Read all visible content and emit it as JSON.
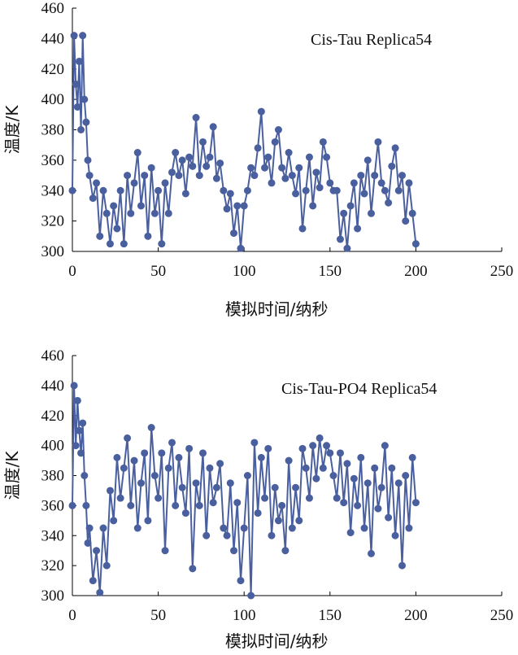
{
  "colors": {
    "series": "#4A5F9E",
    "axis": "#000000",
    "background": "#ffffff"
  },
  "chart_data": [
    {
      "type": "line",
      "title": "Cis-Tau Replica54",
      "xlabel": "模拟时间/纳秒",
      "ylabel": "温度/K",
      "xlim": [
        0,
        250
      ],
      "ylim": [
        300,
        460
      ],
      "xticks": [
        0,
        50,
        100,
        150,
        200,
        250
      ],
      "yticks": [
        300,
        320,
        340,
        360,
        380,
        400,
        420,
        440,
        460
      ],
      "grid": false,
      "legend": "none",
      "markers": true,
      "series": [
        {
          "x": [
            0,
            1,
            2,
            3,
            4,
            5,
            6,
            7,
            8,
            9,
            10,
            12,
            14,
            16,
            18,
            20,
            22,
            24,
            26,
            28,
            30,
            32,
            34,
            36,
            38,
            40,
            42,
            44,
            46,
            48,
            50,
            52,
            54,
            56,
            58,
            60,
            62,
            64,
            66,
            68,
            70,
            72,
            74,
            76,
            78,
            80,
            82,
            84,
            86,
            88,
            90,
            92,
            94,
            96,
            98,
            100,
            102,
            104,
            106,
            108,
            110,
            112,
            114,
            116,
            118,
            120,
            122,
            124,
            126,
            128,
            130,
            132,
            134,
            136,
            138,
            140,
            142,
            144,
            146,
            148,
            150,
            152,
            154,
            156,
            158,
            160,
            162,
            164,
            166,
            168,
            170,
            172,
            174,
            176,
            178,
            180,
            182,
            184,
            186,
            188,
            190,
            192,
            194,
            196,
            198,
            200
          ],
          "y": [
            340,
            442,
            410,
            395,
            425,
            380,
            442,
            400,
            385,
            360,
            350,
            335,
            345,
            310,
            340,
            325,
            305,
            330,
            315,
            340,
            305,
            350,
            325,
            345,
            365,
            330,
            350,
            310,
            355,
            325,
            340,
            305,
            345,
            325,
            352,
            365,
            350,
            360,
            338,
            362,
            356,
            388,
            350,
            372,
            356,
            362,
            382,
            348,
            358,
            340,
            328,
            338,
            312,
            330,
            302,
            330,
            340,
            355,
            350,
            368,
            392,
            355,
            362,
            345,
            372,
            380,
            355,
            348,
            365,
            350,
            338,
            355,
            315,
            340,
            362,
            330,
            352,
            342,
            372,
            362,
            345,
            340,
            340,
            308,
            325,
            302,
            330,
            345,
            315,
            350,
            338,
            360,
            325,
            350,
            372,
            345,
            340,
            332,
            356,
            368,
            340,
            350,
            320,
            345,
            325,
            305
          ]
        }
      ]
    },
    {
      "type": "line",
      "title": "Cis-Tau-PO4 Replica54",
      "xlabel": "模拟时间/纳秒",
      "ylabel": "温度/K",
      "xlim": [
        0,
        250
      ],
      "ylim": [
        300,
        460
      ],
      "xticks": [
        0,
        50,
        100,
        150,
        200,
        250
      ],
      "yticks": [
        300,
        320,
        340,
        360,
        380,
        400,
        420,
        440,
        460
      ],
      "grid": false,
      "legend": "none",
      "markers": true,
      "series": [
        {
          "x": [
            0,
            1,
            2,
            3,
            4,
            5,
            6,
            7,
            8,
            9,
            10,
            12,
            14,
            16,
            18,
            20,
            22,
            24,
            26,
            28,
            30,
            32,
            34,
            36,
            38,
            40,
            42,
            44,
            46,
            48,
            50,
            52,
            54,
            56,
            58,
            60,
            62,
            64,
            66,
            68,
            70,
            72,
            74,
            76,
            78,
            80,
            82,
            84,
            86,
            88,
            90,
            92,
            94,
            96,
            98,
            100,
            102,
            104,
            106,
            108,
            110,
            112,
            114,
            116,
            118,
            120,
            122,
            124,
            126,
            128,
            130,
            132,
            134,
            136,
            138,
            140,
            142,
            144,
            146,
            148,
            150,
            152,
            154,
            156,
            158,
            160,
            162,
            164,
            166,
            168,
            170,
            172,
            174,
            176,
            178,
            180,
            182,
            184,
            186,
            188,
            190,
            192,
            194,
            196,
            198,
            200
          ],
          "y": [
            360,
            440,
            400,
            430,
            410,
            395,
            415,
            380,
            360,
            335,
            345,
            310,
            330,
            302,
            345,
            320,
            370,
            350,
            392,
            365,
            385,
            405,
            360,
            390,
            345,
            375,
            395,
            350,
            412,
            380,
            365,
            395,
            330,
            385,
            402,
            360,
            392,
            372,
            355,
            398,
            318,
            375,
            360,
            395,
            340,
            385,
            362,
            372,
            388,
            345,
            340,
            375,
            330,
            362,
            310,
            345,
            380,
            300,
            402,
            355,
            392,
            365,
            398,
            340,
            372,
            350,
            360,
            330,
            390,
            345,
            372,
            350,
            398,
            385,
            365,
            400,
            378,
            405,
            385,
            400,
            395,
            380,
            365,
            395,
            362,
            388,
            342,
            378,
            360,
            392,
            345,
            375,
            328,
            385,
            358,
            372,
            400,
            352,
            385,
            340,
            375,
            320,
            380,
            345,
            392,
            362
          ]
        }
      ]
    }
  ]
}
